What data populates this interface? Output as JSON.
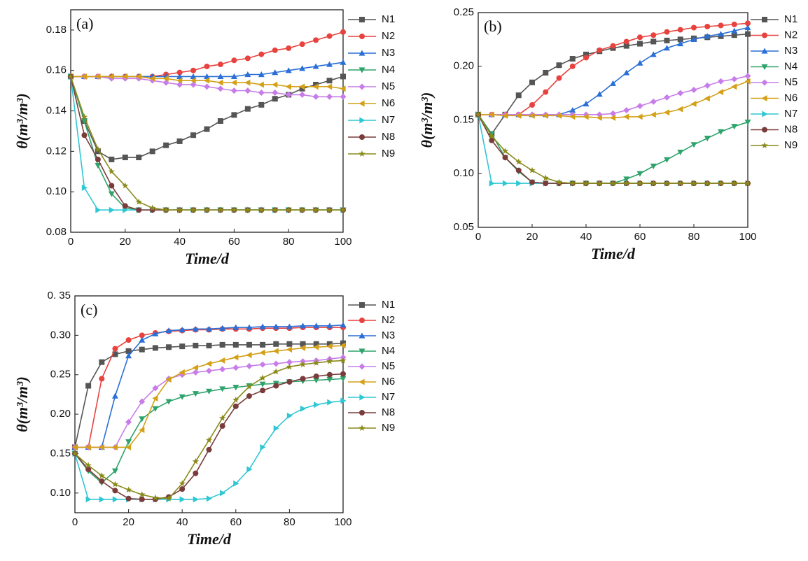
{
  "chart_data": [
    {
      "type": "line",
      "annotation": "(a)",
      "xlabel": "Time/d",
      "ylabel": "θ(m³/m³)",
      "xlim": [
        0,
        100
      ],
      "xticks": [
        0,
        20,
        40,
        60,
        80,
        100
      ],
      "ylim": [
        0.08,
        0.19
      ],
      "yticks": [
        0.08,
        {
          "value": 0.1,
          "label": "0.10"
        },
        0.12,
        0.14,
        0.16,
        0.18
      ],
      "x": [
        0,
        5,
        10,
        15,
        20,
        25,
        30,
        35,
        40,
        45,
        50,
        55,
        60,
        65,
        70,
        75,
        80,
        85,
        90,
        95,
        100
      ],
      "series": [
        {
          "name": "N1",
          "color": "#555555",
          "marker": "square",
          "values": [
            0.157,
            0.135,
            0.12,
            0.116,
            0.117,
            0.117,
            0.12,
            0.123,
            0.125,
            0.128,
            0.131,
            0.135,
            0.138,
            0.141,
            0.143,
            0.146,
            0.148,
            0.151,
            0.153,
            0.155,
            0.157
          ]
        },
        {
          "name": "N2",
          "color": "#e8423f",
          "marker": "circle",
          "values": [
            0.157,
            0.157,
            0.157,
            0.157,
            0.157,
            0.157,
            0.157,
            0.158,
            0.159,
            0.16,
            0.162,
            0.163,
            0.165,
            0.166,
            0.168,
            0.17,
            0.171,
            0.173,
            0.175,
            0.177,
            0.179
          ]
        },
        {
          "name": "N3",
          "color": "#2a6fd6",
          "marker": "up",
          "values": [
            0.157,
            0.157,
            0.157,
            0.157,
            0.157,
            0.157,
            0.157,
            0.157,
            0.157,
            0.157,
            0.157,
            0.157,
            0.157,
            0.158,
            0.158,
            0.159,
            0.16,
            0.161,
            0.162,
            0.163,
            0.164
          ]
        },
        {
          "name": "N4",
          "color": "#2ea36b",
          "marker": "down",
          "values": [
            0.157,
            0.135,
            0.113,
            0.099,
            0.092,
            0.091,
            0.091,
            0.091,
            0.091,
            0.091,
            0.091,
            0.091,
            0.091,
            0.091,
            0.091,
            0.091,
            0.091,
            0.091,
            0.091,
            0.091,
            0.091
          ]
        },
        {
          "name": "N5",
          "color": "#c77de8",
          "marker": "diamond",
          "values": [
            0.157,
            0.157,
            0.157,
            0.156,
            0.156,
            0.156,
            0.155,
            0.154,
            0.153,
            0.153,
            0.152,
            0.151,
            0.15,
            0.15,
            0.149,
            0.149,
            0.148,
            0.148,
            0.147,
            0.147,
            0.147
          ]
        },
        {
          "name": "N6",
          "color": "#d4a017",
          "marker": "left",
          "values": [
            0.157,
            0.157,
            0.157,
            0.157,
            0.157,
            0.157,
            0.156,
            0.156,
            0.155,
            0.155,
            0.155,
            0.154,
            0.154,
            0.154,
            0.153,
            0.153,
            0.152,
            0.152,
            0.152,
            0.152,
            0.151
          ]
        },
        {
          "name": "N7",
          "color": "#2ec7d4",
          "marker": "right",
          "values": [
            0.157,
            0.102,
            0.091,
            0.091,
            0.091,
            0.091,
            0.091,
            0.091,
            0.091,
            0.091,
            0.091,
            0.091,
            0.091,
            0.091,
            0.091,
            0.091,
            0.091,
            0.091,
            0.091,
            0.091,
            0.091
          ]
        },
        {
          "name": "N8",
          "color": "#7a3b3b",
          "marker": "circle",
          "values": [
            0.157,
            0.128,
            0.116,
            0.103,
            0.093,
            0.091,
            0.091,
            0.091,
            0.091,
            0.091,
            0.091,
            0.091,
            0.091,
            0.091,
            0.091,
            0.091,
            0.091,
            0.091,
            0.091,
            0.091,
            0.091
          ]
        },
        {
          "name": "N9",
          "color": "#8a8a1a",
          "marker": "star",
          "values": [
            0.157,
            0.137,
            0.121,
            0.11,
            0.103,
            0.095,
            0.092,
            0.091,
            0.091,
            0.091,
            0.091,
            0.091,
            0.091,
            0.091,
            0.091,
            0.091,
            0.091,
            0.091,
            0.091,
            0.091,
            0.091
          ]
        }
      ]
    },
    {
      "type": "line",
      "annotation": "(b)",
      "xlabel": "Time/d",
      "ylabel": "θ(m³/m³)",
      "xlim": [
        0,
        100
      ],
      "xticks": [
        0,
        20,
        40,
        60,
        80,
        100
      ],
      "ylim": [
        0.05,
        0.25
      ],
      "yticks": [
        0.05,
        {
          "value": 0.1,
          "label": "0.10"
        },
        0.15,
        {
          "value": 0.2,
          "label": "0.20"
        },
        0.25
      ],
      "x": [
        0,
        5,
        10,
        15,
        20,
        25,
        30,
        35,
        40,
        45,
        50,
        55,
        60,
        65,
        70,
        75,
        80,
        85,
        90,
        95,
        100
      ],
      "series": [
        {
          "name": "N1",
          "color": "#555555",
          "marker": "square",
          "values": [
            0.155,
            0.137,
            0.155,
            0.173,
            0.185,
            0.194,
            0.201,
            0.207,
            0.211,
            0.214,
            0.217,
            0.219,
            0.221,
            0.223,
            0.224,
            0.225,
            0.226,
            0.227,
            0.228,
            0.229,
            0.23
          ]
        },
        {
          "name": "N2",
          "color": "#e8423f",
          "marker": "circle",
          "values": [
            0.155,
            0.155,
            0.155,
            0.155,
            0.164,
            0.176,
            0.189,
            0.2,
            0.208,
            0.215,
            0.219,
            0.223,
            0.227,
            0.229,
            0.232,
            0.234,
            0.236,
            0.237,
            0.238,
            0.239,
            0.24
          ]
        },
        {
          "name": "N3",
          "color": "#2a6fd6",
          "marker": "up",
          "values": [
            0.155,
            0.155,
            0.155,
            0.155,
            0.155,
            0.155,
            0.155,
            0.159,
            0.165,
            0.174,
            0.184,
            0.194,
            0.203,
            0.211,
            0.217,
            0.221,
            0.225,
            0.228,
            0.23,
            0.233,
            0.236
          ]
        },
        {
          "name": "N4",
          "color": "#2ea36b",
          "marker": "down",
          "values": [
            0.155,
            0.137,
            0.115,
            0.102,
            0.092,
            0.091,
            0.091,
            0.091,
            0.091,
            0.091,
            0.091,
            0.095,
            0.1,
            0.107,
            0.113,
            0.12,
            0.127,
            0.133,
            0.139,
            0.144,
            0.148
          ]
        },
        {
          "name": "N5",
          "color": "#c77de8",
          "marker": "diamond",
          "values": [
            0.155,
            0.155,
            0.155,
            0.155,
            0.155,
            0.155,
            0.155,
            0.155,
            0.155,
            0.155,
            0.156,
            0.159,
            0.163,
            0.167,
            0.171,
            0.175,
            0.178,
            0.182,
            0.186,
            0.188,
            0.191
          ]
        },
        {
          "name": "N6",
          "color": "#d4a017",
          "marker": "left",
          "values": [
            0.155,
            0.155,
            0.154,
            0.154,
            0.154,
            0.154,
            0.154,
            0.153,
            0.153,
            0.152,
            0.152,
            0.153,
            0.153,
            0.155,
            0.157,
            0.16,
            0.165,
            0.17,
            0.176,
            0.181,
            0.186
          ]
        },
        {
          "name": "N7",
          "color": "#2ec7d4",
          "marker": "right",
          "values": [
            0.155,
            0.091,
            0.091,
            0.091,
            0.091,
            0.091,
            0.091,
            0.091,
            0.091,
            0.091,
            0.091,
            0.091,
            0.091,
            0.091,
            0.091,
            0.091,
            0.091,
            0.091,
            0.091,
            0.091,
            0.091
          ]
        },
        {
          "name": "N8",
          "color": "#7a3b3b",
          "marker": "circle",
          "values": [
            0.155,
            0.131,
            0.115,
            0.103,
            0.092,
            0.091,
            0.091,
            0.091,
            0.091,
            0.091,
            0.091,
            0.091,
            0.091,
            0.091,
            0.091,
            0.091,
            0.091,
            0.091,
            0.091,
            0.091,
            0.091
          ]
        },
        {
          "name": "N9",
          "color": "#8a8a1a",
          "marker": "star",
          "values": [
            0.155,
            0.135,
            0.121,
            0.111,
            0.103,
            0.096,
            0.092,
            0.091,
            0.091,
            0.091,
            0.091,
            0.091,
            0.091,
            0.091,
            0.091,
            0.091,
            0.091,
            0.091,
            0.091,
            0.091,
            0.091
          ]
        }
      ]
    },
    {
      "type": "line",
      "annotation": "(c)",
      "xlabel": "Time/d",
      "ylabel": "θ(m³/m³)",
      "xlim": [
        0,
        100
      ],
      "xticks": [
        0,
        20,
        40,
        60,
        80,
        100
      ],
      "ylim": [
        0.075,
        0.35
      ],
      "yticks": [
        {
          "value": 0.1,
          "label": "0.10"
        },
        0.15,
        {
          "value": 0.2,
          "label": "0.20"
        },
        0.25,
        {
          "value": 0.3,
          "label": "0.30"
        },
        {
          "value": 0.35,
          "label": "0. 35"
        }
      ],
      "x": [
        0,
        5,
        10,
        15,
        20,
        25,
        30,
        35,
        40,
        45,
        50,
        55,
        60,
        65,
        70,
        75,
        80,
        85,
        90,
        95,
        100
      ],
      "series": [
        {
          "name": "N1",
          "color": "#555555",
          "marker": "square",
          "values": [
            0.158,
            0.236,
            0.266,
            0.276,
            0.28,
            0.282,
            0.284,
            0.285,
            0.286,
            0.287,
            0.287,
            0.288,
            0.288,
            0.288,
            0.288,
            0.289,
            0.289,
            0.289,
            0.289,
            0.289,
            0.29
          ]
        },
        {
          "name": "N2",
          "color": "#e8423f",
          "marker": "circle",
          "values": [
            0.158,
            0.158,
            0.245,
            0.283,
            0.294,
            0.3,
            0.303,
            0.305,
            0.306,
            0.307,
            0.307,
            0.308,
            0.308,
            0.308,
            0.309,
            0.309,
            0.309,
            0.31,
            0.31,
            0.31,
            0.31
          ]
        },
        {
          "name": "N3",
          "color": "#2a6fd6",
          "marker": "up",
          "values": [
            0.158,
            0.158,
            0.158,
            0.223,
            0.274,
            0.294,
            0.302,
            0.306,
            0.307,
            0.308,
            0.308,
            0.309,
            0.31,
            0.31,
            0.311,
            0.311,
            0.311,
            0.312,
            0.312,
            0.312,
            0.313
          ]
        },
        {
          "name": "N4",
          "color": "#2ea36b",
          "marker": "down",
          "values": [
            0.15,
            0.128,
            0.113,
            0.128,
            0.165,
            0.194,
            0.207,
            0.216,
            0.222,
            0.226,
            0.229,
            0.232,
            0.234,
            0.236,
            0.238,
            0.239,
            0.241,
            0.242,
            0.243,
            0.244,
            0.245
          ]
        },
        {
          "name": "N5",
          "color": "#c77de8",
          "marker": "diamond",
          "values": [
            0.158,
            0.158,
            0.158,
            0.158,
            0.19,
            0.216,
            0.233,
            0.245,
            0.25,
            0.253,
            0.255,
            0.257,
            0.259,
            0.261,
            0.263,
            0.264,
            0.266,
            0.267,
            0.268,
            0.27,
            0.272
          ]
        },
        {
          "name": "N6",
          "color": "#d4a017",
          "marker": "left",
          "values": [
            0.158,
            0.158,
            0.158,
            0.158,
            0.158,
            0.18,
            0.22,
            0.244,
            0.253,
            0.259,
            0.264,
            0.268,
            0.272,
            0.275,
            0.278,
            0.28,
            0.282,
            0.284,
            0.285,
            0.286,
            0.287
          ]
        },
        {
          "name": "N7",
          "color": "#2ec7d4",
          "marker": "right",
          "values": [
            0.15,
            0.092,
            0.092,
            0.092,
            0.092,
            0.092,
            0.092,
            0.092,
            0.092,
            0.092,
            0.093,
            0.1,
            0.112,
            0.13,
            0.158,
            0.182,
            0.198,
            0.207,
            0.212,
            0.215,
            0.217
          ]
        },
        {
          "name": "N8",
          "color": "#7a3b3b",
          "marker": "circle",
          "values": [
            0.15,
            0.13,
            0.115,
            0.103,
            0.093,
            0.092,
            0.092,
            0.095,
            0.105,
            0.125,
            0.155,
            0.185,
            0.21,
            0.223,
            0.23,
            0.236,
            0.241,
            0.245,
            0.248,
            0.25,
            0.251
          ]
        },
        {
          "name": "N9",
          "color": "#8a8a1a",
          "marker": "star",
          "values": [
            0.15,
            0.135,
            0.122,
            0.111,
            0.104,
            0.098,
            0.094,
            0.093,
            0.112,
            0.14,
            0.167,
            0.195,
            0.218,
            0.235,
            0.246,
            0.254,
            0.26,
            0.263,
            0.265,
            0.267,
            0.268
          ]
        }
      ]
    }
  ]
}
